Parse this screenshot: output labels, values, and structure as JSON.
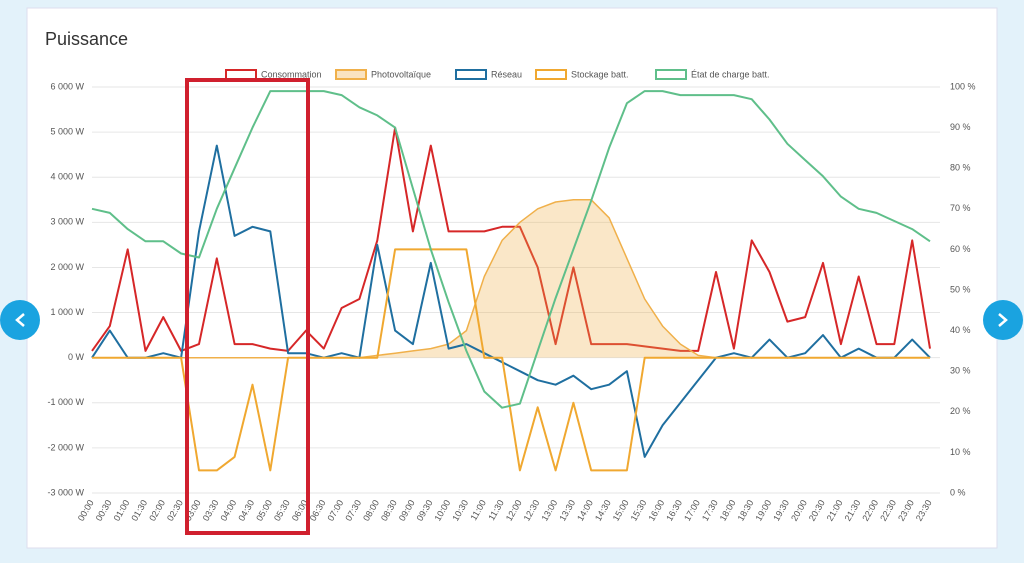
{
  "chart_data": {
    "type": "line",
    "title": "Puissance",
    "categories": [
      "00:00",
      "00:30",
      "01:00",
      "01:30",
      "02:00",
      "02:30",
      "03:00",
      "03:30",
      "04:00",
      "04:30",
      "05:00",
      "05:30",
      "06:00",
      "06:30",
      "07:00",
      "07:30",
      "08:00",
      "08:30",
      "09:00",
      "09:30",
      "10:00",
      "10:30",
      "11:00",
      "11:30",
      "12:00",
      "12:30",
      "13:00",
      "13:30",
      "14:00",
      "14:30",
      "15:00",
      "15:30",
      "16:00",
      "16:30",
      "17:00",
      "17:30",
      "18:00",
      "18:30",
      "19:00",
      "19:30",
      "20:00",
      "20:30",
      "21:00",
      "21:30",
      "22:00",
      "22:30",
      "23:00",
      "23:30"
    ],
    "series": [
      {
        "name": "Consommation",
        "color": "#d62728",
        "values": [
          150,
          700,
          2400,
          150,
          900,
          150,
          300,
          2200,
          300,
          300,
          200,
          150,
          600,
          200,
          1100,
          1300,
          2600,
          5100,
          2800,
          4700,
          2800,
          2800,
          2800,
          2900,
          2900,
          2000,
          300,
          2000,
          300,
          300,
          300,
          250,
          200,
          150,
          150,
          1900,
          200,
          2600,
          1900,
          800,
          900,
          2100,
          300,
          1800,
          300,
          300,
          2600,
          200
        ]
      },
      {
        "name": "Photovoltaïque",
        "color": "#f0b04a",
        "fill": true,
        "values": [
          0,
          0,
          0,
          0,
          0,
          0,
          0,
          0,
          0,
          0,
          0,
          0,
          0,
          0,
          0,
          0,
          50,
          100,
          150,
          200,
          300,
          600,
          1800,
          2600,
          3000,
          3300,
          3450,
          3500,
          3500,
          3100,
          2200,
          1300,
          700,
          300,
          50,
          0,
          0,
          0,
          0,
          0,
          0,
          0,
          0,
          0,
          0,
          0,
          0,
          0
        ]
      },
      {
        "name": "Réseau",
        "color": "#1f6fa0",
        "values": [
          0,
          600,
          0,
          0,
          100,
          0,
          2800,
          4700,
          2700,
          2900,
          2800,
          100,
          100,
          0,
          100,
          0,
          2500,
          600,
          300,
          2100,
          200,
          300,
          100,
          -100,
          -300,
          -500,
          -600,
          -400,
          -700,
          -600,
          -300,
          -2200,
          -1500,
          -1000,
          -500,
          0,
          100,
          0,
          400,
          0,
          100,
          500,
          0,
          200,
          0,
          0,
          400,
          0
        ]
      },
      {
        "name": "Stockage batt.",
        "color": "#f0a830",
        "values": [
          0,
          0,
          0,
          0,
          0,
          0,
          -2500,
          -2500,
          -2200,
          -600,
          -2500,
          0,
          0,
          0,
          0,
          0,
          0,
          2400,
          2400,
          2400,
          2400,
          2400,
          0,
          0,
          -2500,
          -1100,
          -2500,
          -1000,
          -2500,
          -2500,
          -2500,
          0,
          0,
          0,
          0,
          0,
          0,
          0,
          0,
          0,
          0,
          0,
          0,
          0,
          0,
          0,
          0,
          0
        ]
      },
      {
        "name": "État de charge batt.",
        "color": "#5fbf8a",
        "axis": "y2",
        "values": [
          70,
          69,
          65,
          62,
          62,
          59,
          58,
          70,
          80,
          90,
          99,
          99,
          99,
          99,
          98,
          95,
          93,
          90,
          75,
          60,
          47,
          35,
          25,
          21,
          22,
          35,
          48,
          60,
          72,
          85,
          96,
          99,
          99,
          98,
          98,
          98,
          98,
          97,
          92,
          86,
          82,
          78,
          73,
          70,
          69,
          67,
          65,
          62
        ]
      }
    ],
    "ylim": [
      -3000,
      6000
    ],
    "yticks": [
      {
        "value": -3000,
        "label": "-3 000 W"
      },
      {
        "value": -2000,
        "label": "-2 000 W"
      },
      {
        "value": -1000,
        "label": "-1 000 W"
      },
      {
        "value": 0,
        "label": "0 W"
      },
      {
        "value": 1000,
        "label": "1 000 W"
      },
      {
        "value": 2000,
        "label": "2 000 W"
      },
      {
        "value": 3000,
        "label": "3 000 W"
      },
      {
        "value": 4000,
        "label": "4 000 W"
      },
      {
        "value": 5000,
        "label": "5 000 W"
      },
      {
        "value": 6000,
        "label": "6 000 W"
      }
    ],
    "y2lim": [
      0,
      100
    ],
    "y2ticks": [
      {
        "value": 0,
        "label": "0 %"
      },
      {
        "value": 10,
        "label": "10 %"
      },
      {
        "value": 20,
        "label": "20 %"
      },
      {
        "value": 30,
        "label": "30 %"
      },
      {
        "value": 40,
        "label": "40 %"
      },
      {
        "value": 50,
        "label": "50 %"
      },
      {
        "value": 60,
        "label": "60 %"
      },
      {
        "value": 70,
        "label": "70 %"
      },
      {
        "value": 80,
        "label": "80 %"
      },
      {
        "value": 90,
        "label": "90 %"
      },
      {
        "value": 100,
        "label": "100 %"
      }
    ],
    "grid": true
  }
}
